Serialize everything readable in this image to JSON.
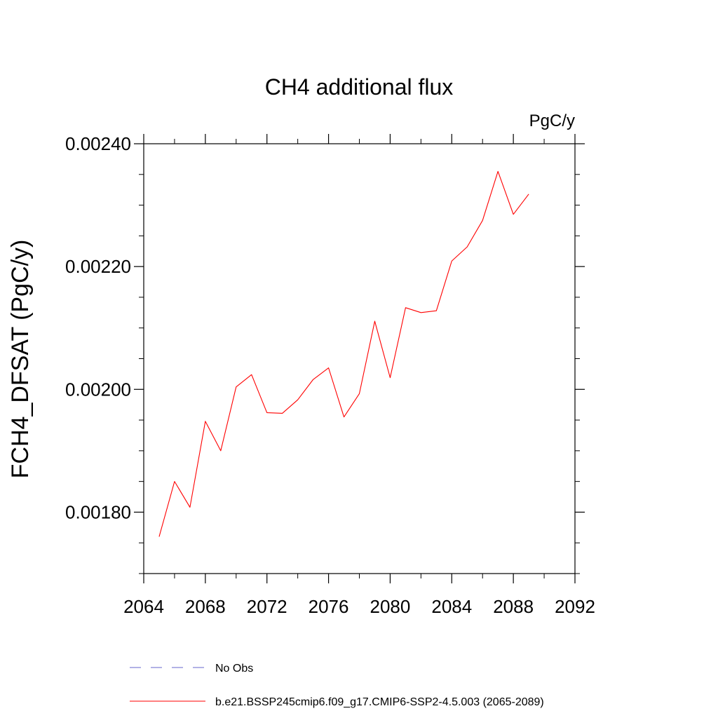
{
  "chart_data": {
    "type": "line",
    "title": "CH4 additional flux",
    "units": "PgC/y",
    "ylabel": "FCH4_DFSAT  (PgC/y)",
    "xlabel": "",
    "xlim": [
      2064,
      2092
    ],
    "ylim": [
      0.0017,
      0.0024
    ],
    "x_ticks": [
      2064,
      2068,
      2072,
      2076,
      2080,
      2084,
      2088,
      2092
    ],
    "x_tick_labels": [
      "2064",
      "2068",
      "2072",
      "2076",
      "2080",
      "2084",
      "2088",
      "2092"
    ],
    "y_ticks": [
      0.0018,
      0.002,
      0.0022,
      0.0024
    ],
    "y_tick_labels": [
      "0.00180",
      "0.00200",
      "0.00220",
      "0.00240"
    ],
    "y_minor_step": 5e-05,
    "x_minor_step": 2,
    "grid": false,
    "legend_position": "bottom",
    "series": [
      {
        "name": "b.e21.BSSP245cmip6.f09_g17.CMIP6-SSP2-4.5.003 (2065-2089)",
        "color": "#ff0000",
        "dash": "solid",
        "x": [
          2065,
          2066,
          2067,
          2068,
          2069,
          2070,
          2071,
          2072,
          2073,
          2074,
          2075,
          2076,
          2077,
          2078,
          2079,
          2080,
          2081,
          2082,
          2083,
          2084,
          2085,
          2086,
          2087,
          2088,
          2089
        ],
        "values": [
          0.00176,
          0.00185,
          0.001808,
          0.001948,
          0.0019,
          0.002004,
          0.002024,
          0.001962,
          0.001961,
          0.001983,
          0.002016,
          0.002035,
          0.001955,
          0.001993,
          0.002111,
          0.002019,
          0.002133,
          0.002125,
          0.002128,
          0.002209,
          0.002232,
          0.002275,
          0.002355,
          0.002285,
          0.002318
        ]
      }
    ],
    "legend": [
      {
        "label": "No Obs",
        "color": "#6666cc",
        "dash": "dashed"
      },
      {
        "label": "b.e21.BSSP245cmip6.f09_g17.CMIP6-SSP2-4.5.003 (2065-2089)",
        "color": "#ff0000",
        "dash": "solid"
      }
    ]
  }
}
